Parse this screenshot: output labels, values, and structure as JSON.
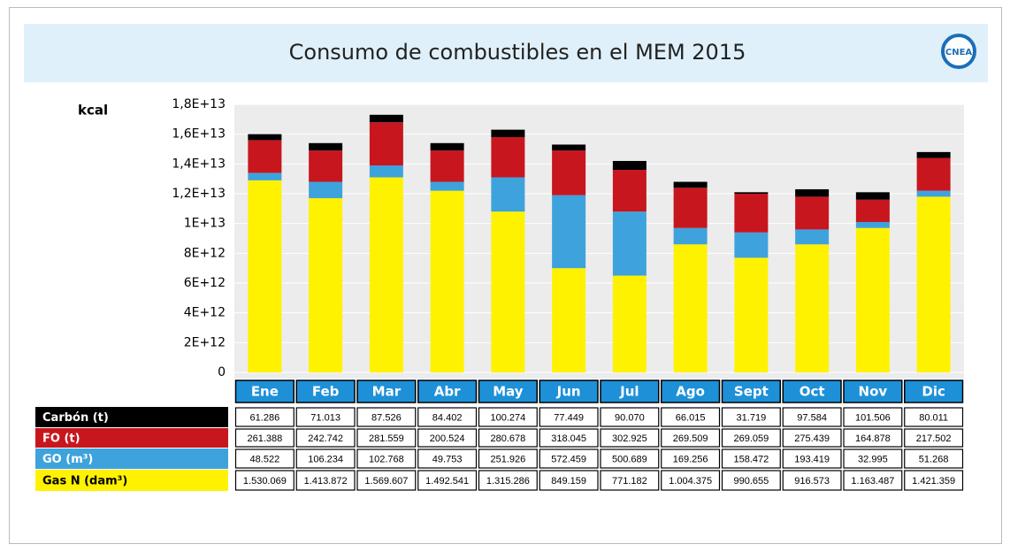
{
  "chart_data": {
    "type": "stacked_bar",
    "title": "Consumo de combustibles en el MEM 2015",
    "logo": "CNEA",
    "y_label": "kcal",
    "categories": [
      "Ene",
      "Feb",
      "Mar",
      "Abr",
      "May",
      "Jun",
      "Jul",
      "Ago",
      "Sept",
      "Oct",
      "Nov",
      "Dic"
    ],
    "ylim": [
      0,
      18000000000000
    ],
    "yticks": [
      0,
      {
        "value": 2000000000000,
        "label": "2E+12"
      },
      {
        "value": 4000000000000,
        "label": "4E+12"
      },
      {
        "value": 6000000000000,
        "label": "6E+12"
      },
      {
        "value": 8000000000000,
        "label": "8E+12"
      },
      {
        "value": 10000000000000,
        "label": "1E+13"
      },
      {
        "value": 12000000000000,
        "label": "1,2E+13"
      },
      {
        "value": 14000000000000,
        "label": "1,4E+13"
      },
      {
        "value": 16000000000000,
        "label": "1,6E+13"
      },
      {
        "value": 18000000000000,
        "label": "1,8E+13"
      }
    ],
    "grid": true,
    "series": [
      {
        "name": "Gas N (dam³)",
        "color": "#fff200",
        "values": [
          12900000000000,
          11700000000000,
          13100000000000,
          12200000000000,
          10800000000000,
          7000000000000,
          6500000000000,
          8600000000000,
          7700000000000,
          8600000000000,
          9700000000000,
          11800000000000
        ],
        "table_labels": [
          "1.530.069",
          "1.413.872",
          "1.569.607",
          "1.492.541",
          "1.315.286",
          "849.159",
          "771.182",
          "1.004.375",
          "990.655",
          "916.573",
          "1.163.487",
          "1.421.359"
        ]
      },
      {
        "name": "GO (m³)",
        "color": "#3ea3dc",
        "values": [
          500000000000,
          1100000000000,
          800000000000,
          600000000000,
          2300000000000,
          4900000000000,
          4300000000000,
          1100000000000,
          1700000000000,
          1000000000000,
          400000000000,
          400000000000
        ],
        "table_labels": [
          "48.522",
          "106.234",
          "102.768",
          "49.753",
          "251.926",
          "572.459",
          "500.689",
          "169.256",
          "158.472",
          "193.419",
          "32.995",
          "51.268"
        ]
      },
      {
        "name": "FO (t)",
        "color": "#c8161e",
        "values": [
          2200000000000,
          2100000000000,
          2900000000000,
          2100000000000,
          2700000000000,
          3000000000000,
          2800000000000,
          2700000000000,
          2600000000000,
          2200000000000,
          1500000000000,
          2200000000000
        ],
        "table_labels": [
          "261.388",
          "242.742",
          "281.559",
          "200.524",
          "280.678",
          "318.045",
          "302.925",
          "269.509",
          "269.059",
          "275.439",
          "164.878",
          "217.502"
        ]
      },
      {
        "name": "Carbón (t)",
        "color": "#000000",
        "values": [
          400000000000,
          500000000000,
          500000000000,
          500000000000,
          500000000000,
          400000000000,
          600000000000,
          400000000000,
          100000000000,
          500000000000,
          500000000000,
          400000000000
        ],
        "table_labels": [
          "61.286",
          "71.013",
          "87.526",
          "84.402",
          "100.274",
          "77.449",
          "90.070",
          "66.015",
          "31.719",
          "97.584",
          "101.506",
          "80.011"
        ]
      }
    ]
  }
}
